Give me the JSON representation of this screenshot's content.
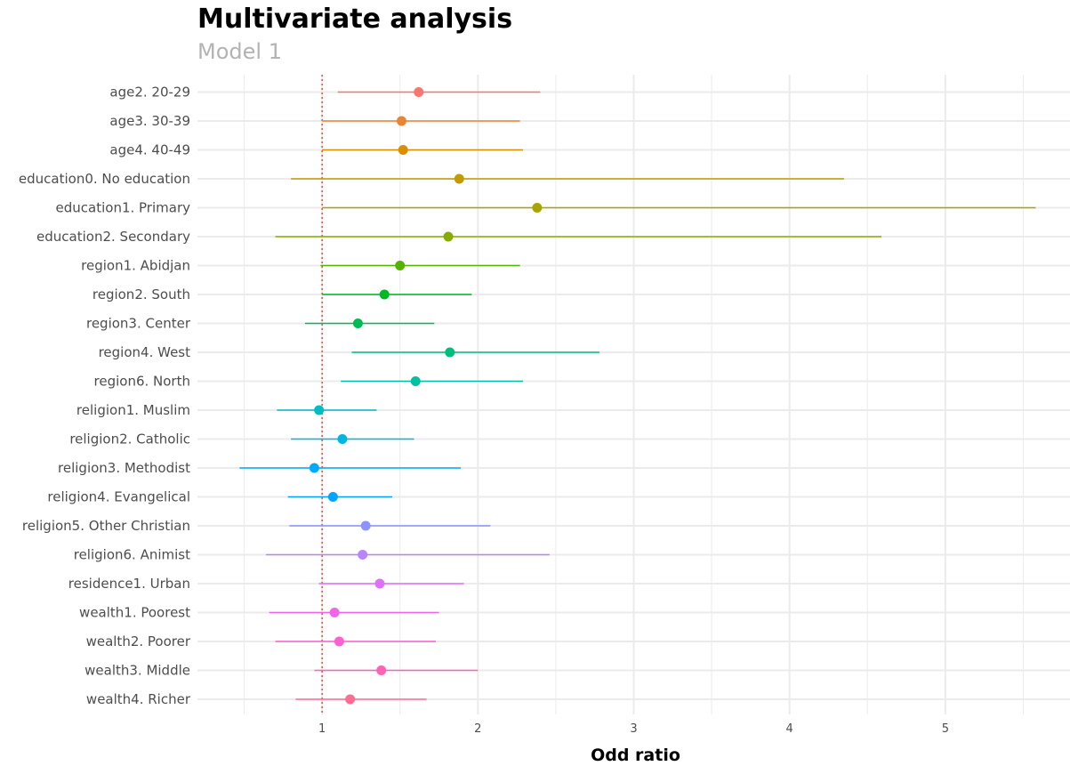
{
  "chart_data": {
    "type": "scatter",
    "title": "Multivariate analysis",
    "subtitle": "Model 1",
    "xlabel": "Odd ratio",
    "ylabel": "",
    "xlim": [
      0.2,
      5.8
    ],
    "x_ticks": [
      1,
      2,
      3,
      4,
      5
    ],
    "reference_line": 1,
    "reference_line_color": "#e8332b",
    "grid": true,
    "legend": "none",
    "series": [
      {
        "label": "age2. 20-29",
        "estimate": 1.62,
        "low": 1.1,
        "high": 2.4,
        "color": "#F8766D"
      },
      {
        "label": "age3. 30-39",
        "estimate": 1.51,
        "low": 1.0,
        "high": 2.27,
        "color": "#EB8335"
      },
      {
        "label": "age4. 40-49",
        "estimate": 1.52,
        "low": 1.0,
        "high": 2.29,
        "color": "#DA8F00"
      },
      {
        "label": "education0. No education",
        "estimate": 1.88,
        "low": 0.8,
        "high": 4.35,
        "color": "#C49A00"
      },
      {
        "label": "education1. Primary",
        "estimate": 2.38,
        "low": 1.0,
        "high": 5.58,
        "color": "#A9A400"
      },
      {
        "label": "education2. Secondary",
        "estimate": 1.81,
        "low": 0.7,
        "high": 4.59,
        "color": "#86AC00"
      },
      {
        "label": "region1. Abidjan",
        "estimate": 1.5,
        "low": 0.99,
        "high": 2.27,
        "color": "#53B400"
      },
      {
        "label": "region2. South",
        "estimate": 1.4,
        "low": 1.0,
        "high": 1.96,
        "color": "#00B81F"
      },
      {
        "label": "region3. Center",
        "estimate": 1.23,
        "low": 0.89,
        "high": 1.72,
        "color": "#00BC56"
      },
      {
        "label": "region4. West",
        "estimate": 1.82,
        "low": 1.19,
        "high": 2.78,
        "color": "#00BF7D"
      },
      {
        "label": "region6. North",
        "estimate": 1.6,
        "low": 1.12,
        "high": 2.29,
        "color": "#00C0A3"
      },
      {
        "label": "religion1. Muslim",
        "estimate": 0.98,
        "low": 0.71,
        "high": 1.35,
        "color": "#00BDC5"
      },
      {
        "label": "religion2. Catholic",
        "estimate": 1.13,
        "low": 0.8,
        "high": 1.59,
        "color": "#00B7E4"
      },
      {
        "label": "religion3. Methodist",
        "estimate": 0.95,
        "low": 0.47,
        "high": 1.89,
        "color": "#00ABFD"
      },
      {
        "label": "religion4. Evangelical",
        "estimate": 1.07,
        "low": 0.78,
        "high": 1.45,
        "color": "#00A5FF"
      },
      {
        "label": "religion5. Other Christian",
        "estimate": 1.28,
        "low": 0.79,
        "high": 2.08,
        "color": "#8B93FF"
      },
      {
        "label": "religion6. Animist",
        "estimate": 1.26,
        "low": 0.64,
        "high": 2.46,
        "color": "#BA83FF"
      },
      {
        "label": "residence1. Urban",
        "estimate": 1.37,
        "low": 0.98,
        "high": 1.91,
        "color": "#DF70F9"
      },
      {
        "label": "wealth1. Poorest",
        "estimate": 1.08,
        "low": 0.66,
        "high": 1.75,
        "color": "#F066EA"
      },
      {
        "label": "wealth2. Poorer",
        "estimate": 1.11,
        "low": 0.7,
        "high": 1.73,
        "color": "#FD61D1"
      },
      {
        "label": "wealth3. Middle",
        "estimate": 1.38,
        "low": 0.95,
        "high": 2.0,
        "color": "#FF62B6"
      },
      {
        "label": "wealth4. Richer",
        "estimate": 1.18,
        "low": 0.83,
        "high": 1.67,
        "color": "#FF6C91"
      }
    ]
  }
}
